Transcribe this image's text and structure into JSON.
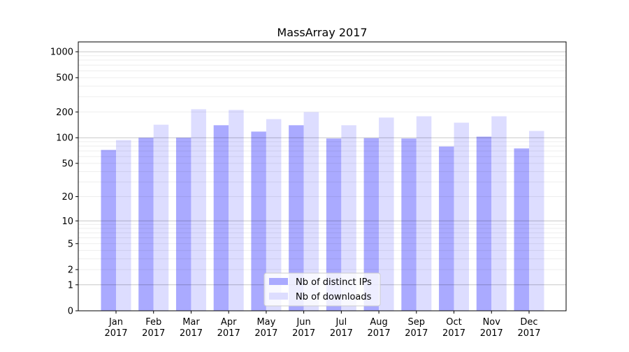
{
  "chart_data": {
    "type": "bar",
    "title": "MassArray 2017",
    "xlabel": "",
    "ylabel": "",
    "yscale": "log(1+y)",
    "ylim": [
      0,
      1300
    ],
    "yticks": [
      0,
      1,
      2,
      5,
      10,
      20,
      50,
      100,
      200,
      500,
      1000
    ],
    "grid": true,
    "legend_position": "lower center",
    "categories": [
      "Jan\n2017",
      "Feb\n2017",
      "Mar\n2017",
      "Apr\n2017",
      "May\n2017",
      "Jun\n2017",
      "Jul\n2017",
      "Aug\n2017",
      "Sep\n2017",
      "Oct\n2017",
      "Nov\n2017",
      "Dec\n2017"
    ],
    "series": [
      {
        "name": "Nb of distinct IPs",
        "color": "#aaaaff",
        "values": [
          72,
          100,
          100,
          140,
          118,
          140,
          98,
          99,
          98,
          79,
          103,
          75
        ]
      },
      {
        "name": "Nb of downloads",
        "color": "#ddddff",
        "values": [
          94,
          142,
          215,
          211,
          165,
          199,
          140,
          172,
          178,
          150,
          178,
          120
        ]
      }
    ]
  }
}
